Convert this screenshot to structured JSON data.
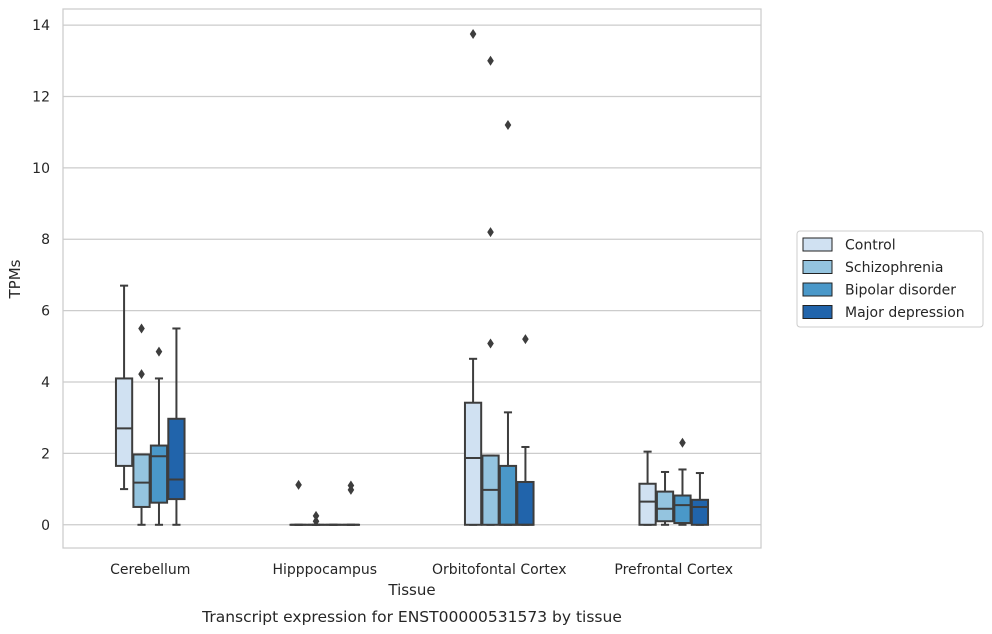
{
  "chart_data": {
    "type": "boxplot",
    "title": "Transcript expression for ENST00000531573 by tissue",
    "xlabel": "Tissue",
    "ylabel": "TPMs",
    "ylim": [
      -0.65,
      14.45
    ],
    "yticks": [
      0,
      2,
      4,
      6,
      8,
      10,
      12,
      14
    ],
    "grid": true,
    "legend_position": "right",
    "categories": [
      "Cerebellum",
      "Hipppocampus",
      "Orbitofontal Cortex",
      "Prefrontal Cortex"
    ],
    "series": [
      {
        "name": "Control",
        "color": "#d0e1f2",
        "boxes": [
          {
            "whislo": 1.0,
            "q1": 1.65,
            "med": 2.7,
            "q3": 4.1,
            "whishi": 6.7,
            "fliers": []
          },
          {
            "whislo": 0,
            "q1": 0,
            "med": 0,
            "q3": 0,
            "whishi": 0,
            "fliers": [
              1.12
            ]
          },
          {
            "whislo": 0,
            "q1": 0,
            "med": 1.87,
            "q3": 3.42,
            "whishi": 4.65,
            "fliers": [
              13.75
            ]
          },
          {
            "whislo": 0,
            "q1": 0,
            "med": 0.65,
            "q3": 1.15,
            "whishi": 2.05,
            "fliers": []
          }
        ]
      },
      {
        "name": "Schizophrenia",
        "color": "#94c4df",
        "boxes": [
          {
            "whislo": 0,
            "q1": 0.5,
            "med": 1.18,
            "q3": 1.97,
            "whishi": 1.97,
            "fliers": [
              4.22,
              5.5
            ]
          },
          {
            "whislo": 0,
            "q1": 0,
            "med": 0,
            "q3": 0,
            "whishi": 0,
            "fliers": [
              0.1,
              0.25
            ]
          },
          {
            "whislo": 0,
            "q1": 0,
            "med": 0.98,
            "q3": 1.94,
            "whishi": 1.94,
            "fliers": [
              5.08,
              8.2,
              13.0
            ]
          },
          {
            "whislo": 0,
            "q1": 0.1,
            "med": 0.45,
            "q3": 0.93,
            "whishi": 1.48,
            "fliers": []
          }
        ]
      },
      {
        "name": "Bipolar disorder",
        "color": "#4a98c9",
        "boxes": [
          {
            "whislo": 0,
            "q1": 0.62,
            "med": 1.92,
            "q3": 2.22,
            "whishi": 4.1,
            "fliers": [
              4.85
            ]
          },
          {
            "whislo": 0,
            "q1": 0,
            "med": 0,
            "q3": 0,
            "whishi": 0,
            "fliers": []
          },
          {
            "whislo": 0,
            "q1": 0,
            "med": 0,
            "q3": 1.65,
            "whishi": 3.15,
            "fliers": [
              11.2
            ]
          },
          {
            "whislo": 0,
            "q1": 0.05,
            "med": 0.55,
            "q3": 0.82,
            "whishi": 1.55,
            "fliers": [
              2.3
            ]
          }
        ]
      },
      {
        "name": "Major depression",
        "color": "#2164ab",
        "boxes": [
          {
            "whislo": 0,
            "q1": 0.72,
            "med": 1.27,
            "q3": 2.97,
            "whishi": 5.5,
            "fliers": []
          },
          {
            "whislo": 0,
            "q1": 0,
            "med": 0,
            "q3": 0,
            "whishi": 0,
            "fliers": [
              0.98,
              1.1
            ]
          },
          {
            "whislo": 0,
            "q1": 0,
            "med": 0,
            "q3": 1.2,
            "whishi": 2.18,
            "fliers": [
              5.2
            ]
          },
          {
            "whislo": 0,
            "q1": 0,
            "med": 0.5,
            "q3": 0.7,
            "whishi": 1.45,
            "fliers": []
          }
        ]
      }
    ]
  }
}
